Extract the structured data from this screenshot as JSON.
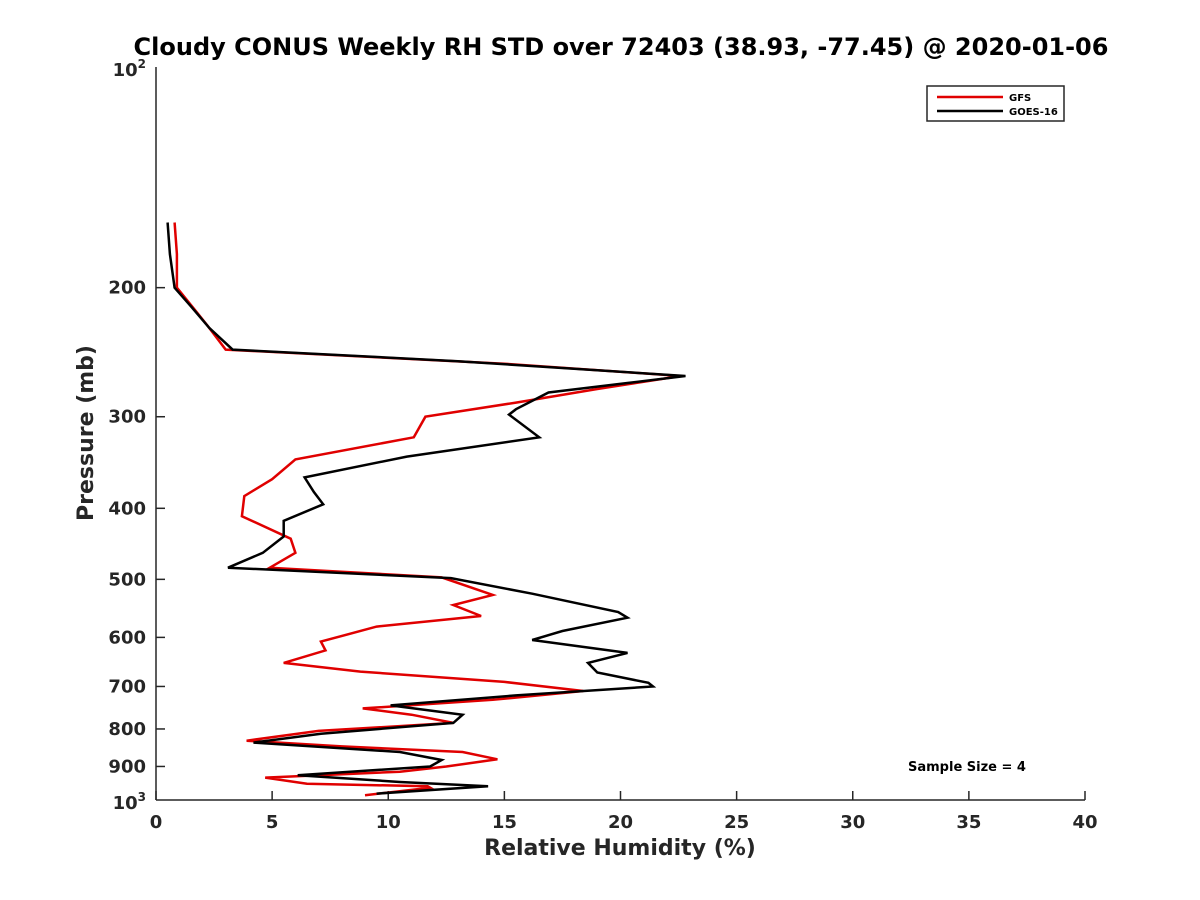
{
  "chart_data": {
    "type": "line",
    "title": "Cloudy CONUS Weekly RH STD over 72403 (38.93, -77.45) @ 2020-01-06",
    "xlabel": "Relative Humidity (%)",
    "ylabel": "Pressure (mb)",
    "xlim": [
      0,
      40
    ],
    "ylim": [
      100,
      1000
    ],
    "y_scale": "log",
    "y_reversed": true,
    "grid": false,
    "legend_position": "top-right",
    "x_ticks": [
      0,
      5,
      10,
      15,
      20,
      25,
      30,
      35,
      40
    ],
    "x_tick_labels": [
      "0",
      "5",
      "10",
      "15",
      "20",
      "25",
      "30",
      "35",
      "40"
    ],
    "y_ticks": [
      200,
      300,
      400,
      500,
      600,
      700,
      800,
      900
    ],
    "y_tick_labels": [
      "200",
      "300",
      "400",
      "500",
      "600",
      "700",
      "800",
      "900"
    ],
    "y_tick_end_labels": [
      {
        "value": 100,
        "base": "10",
        "exp": "2"
      },
      {
        "value": 1000,
        "base": "10",
        "exp": "3"
      }
    ],
    "annotation": "Sample Size = 4",
    "series": [
      {
        "name": "GFS",
        "color": "#e00000",
        "points": [
          [
            0.8,
            163
          ],
          [
            0.9,
            180
          ],
          [
            0.9,
            200
          ],
          [
            1.7,
            215
          ],
          [
            2.2,
            225
          ],
          [
            3.0,
            243
          ],
          [
            15.0,
            254
          ],
          [
            22.6,
            264
          ],
          [
            19.0,
            275
          ],
          [
            15.5,
            287
          ],
          [
            11.6,
            300
          ],
          [
            11.1,
            320
          ],
          [
            6.0,
            343
          ],
          [
            5.0,
            365
          ],
          [
            3.8,
            385
          ],
          [
            3.7,
            410
          ],
          [
            5.8,
            440
          ],
          [
            6.0,
            460
          ],
          [
            4.9,
            482
          ],
          [
            12.3,
            497
          ],
          [
            14.5,
            525
          ],
          [
            12.8,
            542
          ],
          [
            14.0,
            561
          ],
          [
            9.5,
            580
          ],
          [
            7.1,
            608
          ],
          [
            7.3,
            625
          ],
          [
            5.5,
            650
          ],
          [
            8.8,
            668
          ],
          [
            15.0,
            690
          ],
          [
            18.4,
            710
          ],
          [
            14.5,
            730
          ],
          [
            8.9,
            750
          ],
          [
            11.0,
            765
          ],
          [
            12.8,
            785
          ],
          [
            7.0,
            805
          ],
          [
            3.9,
            830
          ],
          [
            8.0,
            845
          ],
          [
            13.2,
            860
          ],
          [
            14.7,
            880
          ],
          [
            12.5,
            900
          ],
          [
            10.5,
            915
          ],
          [
            4.7,
            932
          ],
          [
            6.5,
            950
          ],
          [
            11.7,
            958
          ],
          [
            11.8,
            962
          ],
          [
            9.0,
            985
          ]
        ]
      },
      {
        "name": "GOES-16",
        "color": "#000000",
        "points": [
          [
            0.5,
            163
          ],
          [
            0.6,
            180
          ],
          [
            0.8,
            200
          ],
          [
            1.5,
            212
          ],
          [
            2.3,
            227
          ],
          [
            3.3,
            243
          ],
          [
            13.0,
            252
          ],
          [
            22.8,
            264
          ],
          [
            16.9,
            278
          ],
          [
            15.5,
            293
          ],
          [
            15.2,
            298
          ],
          [
            16.5,
            320
          ],
          [
            10.8,
            340
          ],
          [
            6.4,
            363
          ],
          [
            6.8,
            380
          ],
          [
            7.2,
            395
          ],
          [
            5.5,
            416
          ],
          [
            5.5,
            437
          ],
          [
            4.6,
            460
          ],
          [
            3.1,
            482
          ],
          [
            12.7,
            498
          ],
          [
            16.2,
            523
          ],
          [
            19.9,
            554
          ],
          [
            20.3,
            564
          ],
          [
            17.5,
            588
          ],
          [
            16.2,
            605
          ],
          [
            20.3,
            630
          ],
          [
            18.6,
            650
          ],
          [
            19.0,
            670
          ],
          [
            21.2,
            692
          ],
          [
            21.4,
            700
          ],
          [
            15.5,
            720
          ],
          [
            10.1,
            743
          ],
          [
            13.2,
            765
          ],
          [
            12.8,
            785
          ],
          [
            7.1,
            812
          ],
          [
            4.2,
            835
          ],
          [
            10.5,
            860
          ],
          [
            12.3,
            882
          ],
          [
            11.8,
            900
          ],
          [
            6.1,
            925
          ],
          [
            10.5,
            945
          ],
          [
            14.3,
            958
          ],
          [
            9.5,
            980
          ]
        ]
      }
    ]
  }
}
